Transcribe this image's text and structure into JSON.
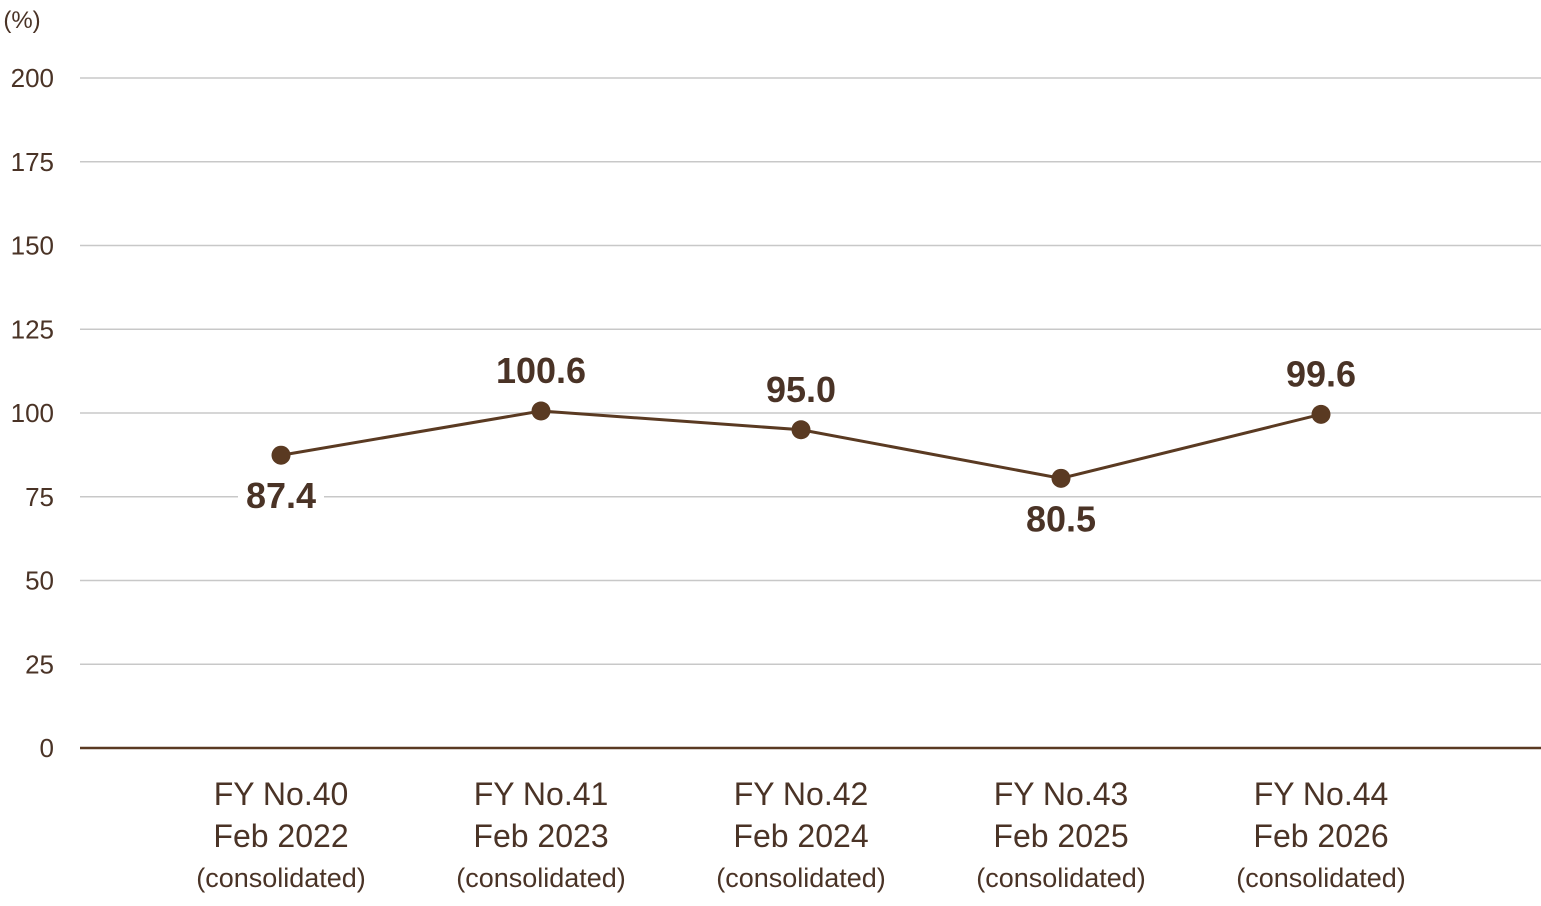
{
  "chart_data": {
    "type": "line",
    "y_unit": "(%)",
    "ylim": [
      0,
      200
    ],
    "yticks": [
      "200",
      "175",
      "150",
      "125",
      "100",
      "75",
      "50",
      "25",
      "0"
    ],
    "ytick_values": [
      200,
      175,
      150,
      125,
      100,
      75,
      50,
      25,
      0
    ],
    "grid": true,
    "legend": "none",
    "categories": [
      {
        "line1": "FY No.40",
        "line2": "Feb 2022",
        "line3": "(consolidated)"
      },
      {
        "line1": "FY No.41",
        "line2": "Feb 2023",
        "line3": "(consolidated)"
      },
      {
        "line1": "FY No.42",
        "line2": "Feb 2024",
        "line3": "(consolidated)"
      },
      {
        "line1": "FY No.43",
        "line2": "Feb 2025",
        "line3": "(consolidated)"
      },
      {
        "line1": "FY No.44",
        "line2": "Feb 2026",
        "line3": "(consolidated)"
      }
    ],
    "values": [
      87.4,
      100.6,
      95.0,
      80.5,
      99.6
    ],
    "data_labels": [
      "87.4",
      "100.6",
      "95.0",
      "80.5",
      "99.6"
    ],
    "label_positions": [
      "below",
      "above",
      "above",
      "below",
      "above"
    ],
    "colors": {
      "line": "#5a3a22",
      "marker": "#5a3a22",
      "grid": "#c8c8c8",
      "axis": "#5a3a22",
      "text": "#4a3326"
    }
  }
}
